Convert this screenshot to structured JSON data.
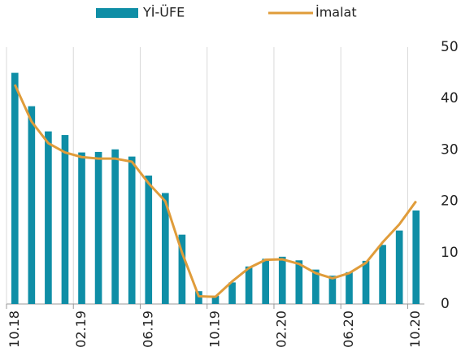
{
  "chart_data": {
    "type": "bar_line",
    "categories": [
      "10.18",
      null,
      null,
      null,
      "02.19",
      null,
      null,
      null,
      "06.19",
      null,
      null,
      null,
      "10.19",
      null,
      null,
      null,
      "02.20",
      null,
      null,
      null,
      "06.20",
      null,
      null,
      null,
      "10.20"
    ],
    "series": [
      {
        "name": "Yİ-ÜFE",
        "type": "bar",
        "color": "#0f8ea6",
        "values": [
          45.0,
          38.5,
          33.6,
          32.9,
          29.5,
          29.6,
          30.1,
          28.7,
          25.0,
          21.6,
          13.5,
          2.5,
          1.6,
          4.2,
          7.3,
          8.8,
          9.2,
          8.5,
          6.7,
          5.5,
          6.2,
          8.4,
          11.5,
          14.3,
          18.2
        ]
      },
      {
        "name": "İmalat",
        "type": "line",
        "color": "#e09c3a",
        "values": [
          42.7,
          35.5,
          31.3,
          29.5,
          28.6,
          28.3,
          28.3,
          27.7,
          23.5,
          20.0,
          10.0,
          1.5,
          1.4,
          4.4,
          7.0,
          8.6,
          8.7,
          7.8,
          6.0,
          5.0,
          6.0,
          8.0,
          12.0,
          15.5,
          20.0
        ]
      }
    ],
    "ylim": [
      0,
      50
    ],
    "yticks": [
      0,
      10,
      20,
      30,
      40,
      50
    ],
    "y_axis_side": "right",
    "grid": "x"
  }
}
